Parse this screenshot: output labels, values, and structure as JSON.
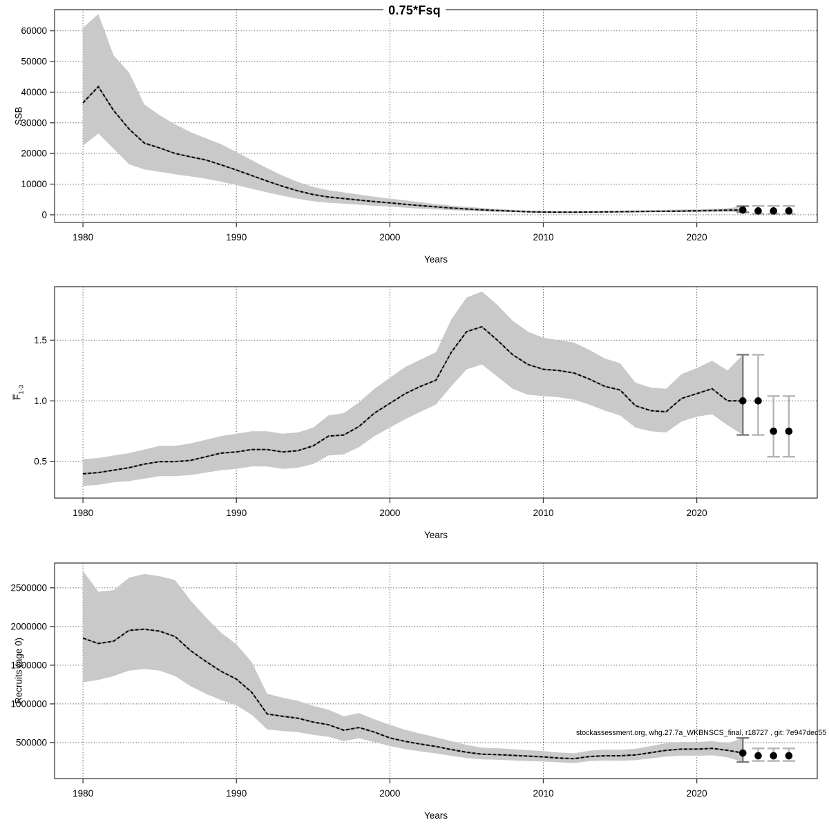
{
  "title": "0.75*Fsq",
  "annotation": "stockassessment.org, whg.27.7a_WKBNSCS_final, r18727 , git: 7e947dec55",
  "colors": {
    "band": "#c9c9c9",
    "line": "#000000",
    "line_under": "#8f8f8f",
    "dot": "#000000",
    "errorbar": "#b4b4b4",
    "errorbar_first": "#7a7a7a",
    "grid": "#4a4a4a",
    "border": "#3c3c3c",
    "text": "#000000"
  },
  "chart_data": [
    {
      "type": "line",
      "ylabel": "SSB",
      "xlabel": "Years",
      "xticks": [
        1980,
        1990,
        2000,
        2010,
        2020
      ],
      "yticks": [
        0,
        10000,
        20000,
        30000,
        40000,
        50000,
        60000
      ],
      "ytick_labels": [
        "0",
        "10000",
        "20000",
        "30000",
        "40000",
        "50000",
        "60000"
      ],
      "xlim": [
        1978.15,
        2027.85
      ],
      "ylim": [
        -2500,
        66900
      ],
      "x": [
        1980,
        1981,
        1982,
        1983,
        1984,
        1985,
        1986,
        1987,
        1988,
        1989,
        1990,
        1991,
        1992,
        1993,
        1994,
        1995,
        1996,
        1997,
        1998,
        1999,
        2000,
        2001,
        2002,
        2003,
        2004,
        2005,
        2006,
        2007,
        2008,
        2009,
        2010,
        2011,
        2012,
        2013,
        2014,
        2015,
        2016,
        2017,
        2018,
        2019,
        2020,
        2021,
        2022,
        2023
      ],
      "values": [
        36500,
        41800,
        34000,
        28000,
        23400,
        21800,
        20000,
        18900,
        17900,
        16300,
        14600,
        12800,
        11000,
        9300,
        7800,
        6600,
        5800,
        5300,
        4800,
        4300,
        3900,
        3400,
        3000,
        2600,
        2200,
        1900,
        1600,
        1400,
        1200,
        1000,
        900,
        850,
        850,
        900,
        950,
        1000,
        1050,
        1100,
        1150,
        1200,
        1300,
        1400,
        1500,
        1550
      ],
      "band_lo": [
        22500,
        26500,
        21500,
        16500,
        14800,
        14000,
        13200,
        12500,
        11800,
        10800,
        9700,
        8500,
        7300,
        6200,
        5200,
        4400,
        3900,
        3600,
        3300,
        2900,
        2700,
        2300,
        2000,
        1750,
        1500,
        1300,
        1100,
        950,
        800,
        700,
        620,
        580,
        580,
        620,
        650,
        700,
        730,
        780,
        820,
        860,
        900,
        950,
        1000,
        800
      ],
      "band_hi": [
        61000,
        65500,
        52000,
        46500,
        36000,
        32500,
        29500,
        27000,
        25000,
        23000,
        20500,
        17800,
        15200,
        12800,
        10700,
        9100,
        8000,
        7300,
        6600,
        5900,
        5300,
        4700,
        4100,
        3500,
        3000,
        2600,
        2200,
        1900,
        1650,
        1400,
        1250,
        1150,
        1150,
        1200,
        1300,
        1350,
        1450,
        1550,
        1600,
        1700,
        1800,
        1950,
        2100,
        2800
      ],
      "forecast": {
        "years": [
          2023,
          2024,
          2025,
          2026
        ],
        "values": [
          1550,
          1250,
          1250,
          1250
        ],
        "lo": [
          800,
          350,
          350,
          350
        ],
        "hi": [
          2800,
          2900,
          2900,
          2900
        ]
      }
    },
    {
      "type": "line",
      "ylabel_base": "F̅",
      "ylabel_sub": "1-3",
      "xlabel": "Years",
      "xticks": [
        1980,
        1990,
        2000,
        2010,
        2020
      ],
      "yticks": [
        0.5,
        1.0,
        1.5
      ],
      "ytick_labels": [
        "0.5",
        "1.0",
        "1.5"
      ],
      "xlim": [
        1978.15,
        2027.85
      ],
      "ylim": [
        0.2,
        1.94
      ],
      "x": [
        1980,
        1981,
        1982,
        1983,
        1984,
        1985,
        1986,
        1987,
        1988,
        1989,
        1990,
        1991,
        1992,
        1993,
        1994,
        1995,
        1996,
        1997,
        1998,
        1999,
        2000,
        2001,
        2002,
        2003,
        2004,
        2005,
        2006,
        2007,
        2008,
        2009,
        2010,
        2011,
        2012,
        2013,
        2014,
        2015,
        2016,
        2017,
        2018,
        2019,
        2020,
        2021,
        2022,
        2023
      ],
      "values": [
        0.4,
        0.41,
        0.43,
        0.45,
        0.48,
        0.5,
        0.5,
        0.51,
        0.54,
        0.57,
        0.58,
        0.6,
        0.6,
        0.58,
        0.59,
        0.63,
        0.71,
        0.72,
        0.79,
        0.9,
        0.98,
        1.06,
        1.12,
        1.17,
        1.4,
        1.57,
        1.61,
        1.5,
        1.38,
        1.3,
        1.26,
        1.25,
        1.23,
        1.18,
        1.12,
        1.09,
        0.96,
        0.92,
        0.91,
        1.02,
        1.06,
        1.1,
        1.0,
        1.0
      ],
      "band_lo": [
        0.3,
        0.31,
        0.33,
        0.34,
        0.36,
        0.38,
        0.38,
        0.39,
        0.41,
        0.43,
        0.44,
        0.46,
        0.46,
        0.44,
        0.45,
        0.48,
        0.55,
        0.56,
        0.62,
        0.71,
        0.78,
        0.85,
        0.91,
        0.97,
        1.12,
        1.26,
        1.3,
        1.2,
        1.1,
        1.05,
        1.04,
        1.03,
        1.01,
        0.97,
        0.92,
        0.88,
        0.78,
        0.75,
        0.74,
        0.83,
        0.87,
        0.89,
        0.8,
        0.72
      ],
      "band_hi": [
        0.52,
        0.53,
        0.55,
        0.57,
        0.6,
        0.63,
        0.63,
        0.65,
        0.68,
        0.71,
        0.73,
        0.75,
        0.75,
        0.73,
        0.74,
        0.78,
        0.88,
        0.9,
        0.99,
        1.1,
        1.19,
        1.28,
        1.34,
        1.4,
        1.67,
        1.85,
        1.9,
        1.79,
        1.66,
        1.57,
        1.52,
        1.5,
        1.48,
        1.42,
        1.35,
        1.31,
        1.15,
        1.11,
        1.1,
        1.22,
        1.27,
        1.33,
        1.25,
        1.38
      ],
      "forecast": {
        "years": [
          2023,
          2024,
          2025,
          2026
        ],
        "values": [
          1.0,
          1.0,
          0.75,
          0.75
        ],
        "lo": [
          0.72,
          0.72,
          0.54,
          0.54
        ],
        "hi": [
          1.38,
          1.38,
          1.04,
          1.04
        ]
      }
    },
    {
      "type": "line",
      "ylabel": "Recruits (age 0)",
      "xlabel": "Years",
      "xticks": [
        1980,
        1990,
        2000,
        2010,
        2020
      ],
      "yticks": [
        500000,
        1000000,
        1500000,
        2000000,
        2500000
      ],
      "ytick_labels": [
        "500000",
        "1000000",
        "1500000",
        "2000000",
        "2500000"
      ],
      "xlim": [
        1978.15,
        2027.85
      ],
      "ylim": [
        35000,
        2820000
      ],
      "x": [
        1980,
        1981,
        1982,
        1983,
        1984,
        1985,
        1986,
        1987,
        1988,
        1989,
        1990,
        1991,
        1992,
        1993,
        1994,
        1995,
        1996,
        1997,
        1998,
        1999,
        2000,
        2001,
        2002,
        2003,
        2004,
        2005,
        2006,
        2007,
        2008,
        2009,
        2010,
        2011,
        2012,
        2013,
        2014,
        2015,
        2016,
        2017,
        2018,
        2019,
        2020,
        2021,
        2022,
        2023
      ],
      "values": [
        1850000,
        1780000,
        1810000,
        1950000,
        1965000,
        1940000,
        1870000,
        1690000,
        1550000,
        1420000,
        1320000,
        1150000,
        870000,
        840000,
        815000,
        765000,
        730000,
        660000,
        695000,
        635000,
        560000,
        515000,
        480000,
        450000,
        410000,
        375000,
        350000,
        345000,
        335000,
        325000,
        315000,
        300000,
        292000,
        320000,
        330000,
        330000,
        340000,
        370000,
        400000,
        415000,
        415000,
        425000,
        400000,
        365000
      ],
      "band_lo": [
        1280000,
        1310000,
        1360000,
        1430000,
        1450000,
        1430000,
        1360000,
        1230000,
        1130000,
        1050000,
        980000,
        860000,
        670000,
        650000,
        635000,
        600000,
        575000,
        520000,
        555000,
        505000,
        455000,
        415000,
        385000,
        360000,
        330000,
        300000,
        282000,
        278000,
        270000,
        262000,
        255000,
        245000,
        235000,
        260000,
        268000,
        266000,
        272000,
        295000,
        320000,
        332000,
        330000,
        335000,
        310000,
        250000
      ],
      "band_hi": [
        2720000,
        2450000,
        2470000,
        2630000,
        2680000,
        2650000,
        2600000,
        2340000,
        2120000,
        1920000,
        1770000,
        1540000,
        1130000,
        1080000,
        1040000,
        975000,
        925000,
        840000,
        880000,
        800000,
        730000,
        665000,
        615000,
        570000,
        520000,
        470000,
        435000,
        428000,
        415000,
        402000,
        390000,
        372000,
        362000,
        396000,
        410000,
        408000,
        420000,
        455000,
        492000,
        508000,
        505000,
        520000,
        490000,
        560000
      ],
      "forecast": {
        "years": [
          2023,
          2024,
          2025,
          2026
        ],
        "values": [
          365000,
          330000,
          330000,
          330000
        ],
        "lo": [
          250000,
          262000,
          262000,
          262000
        ],
        "hi": [
          560000,
          425000,
          425000,
          425000
        ]
      }
    }
  ]
}
